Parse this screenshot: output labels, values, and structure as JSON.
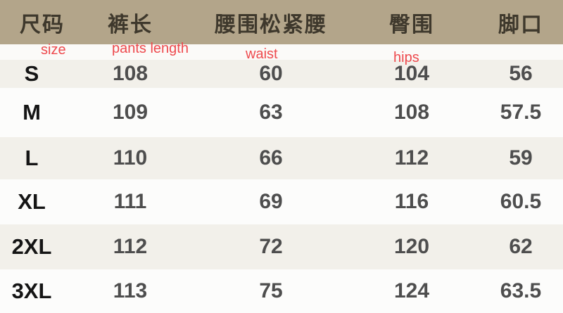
{
  "chart_data": {
    "type": "table",
    "title": "",
    "columns": [
      "尺码",
      "裤长",
      "腰围松紧腰",
      "臀围",
      "脚口"
    ],
    "column_annotations_en": [
      "size",
      "pants length",
      "waist",
      "hips",
      ""
    ],
    "rows": [
      [
        "S",
        "108",
        "60",
        "104",
        "56"
      ],
      [
        "M",
        "109",
        "63",
        "108",
        "57.5"
      ],
      [
        "L",
        "110",
        "66",
        "112",
        "59"
      ],
      [
        "XL",
        "111",
        "69",
        "116",
        "60.5"
      ],
      [
        "2XL",
        "112",
        "72",
        "120",
        "62"
      ],
      [
        "3XL",
        "113",
        "75",
        "124",
        "63.5"
      ]
    ]
  },
  "colors": {
    "header_background": "#b3a58a",
    "header_text": "#3e382c",
    "annotation_red": "#ee4a4e",
    "row_light": "#f2f0ea",
    "row_white": "#fcfcfb",
    "value_text": "#4e4e4e",
    "size_text": "#151515"
  }
}
